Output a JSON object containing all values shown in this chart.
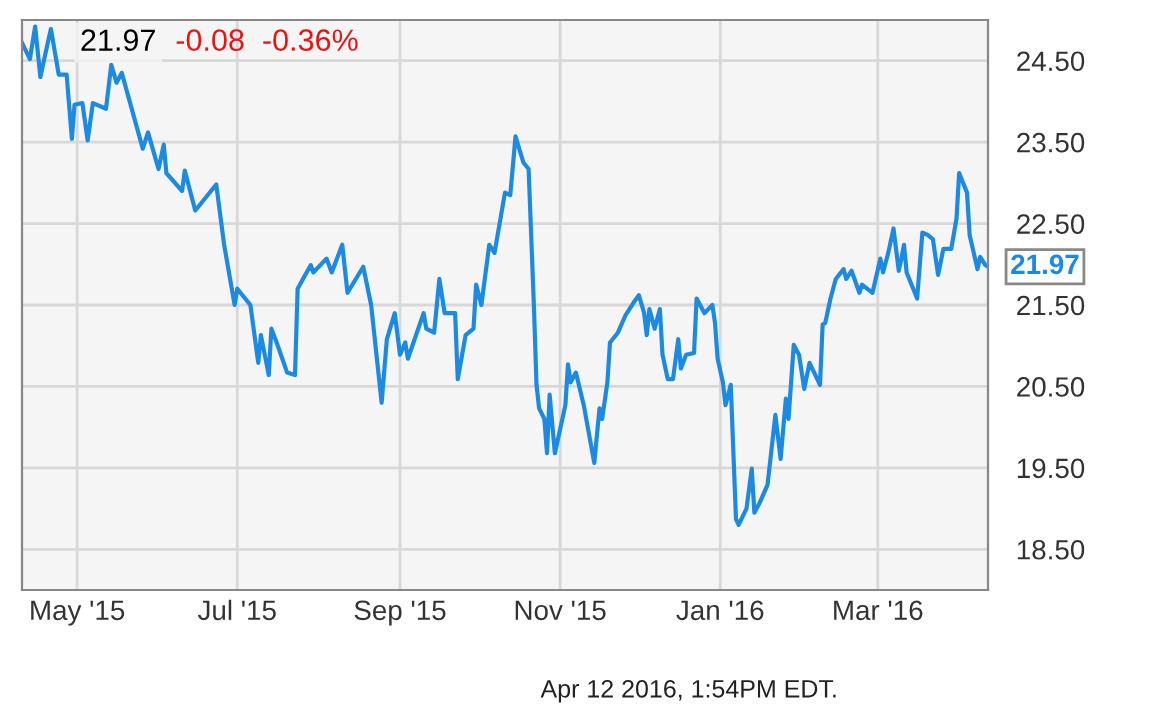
{
  "chart_data": {
    "type": "line",
    "title": "21.97",
    "subtitle": "-0.08  -0.36%",
    "x": [
      "2015-04-10",
      "2015-04-13",
      "2015-04-15",
      "2015-04-17",
      "2015-04-19",
      "2015-04-21",
      "2015-04-24",
      "2015-04-27",
      "2015-04-29",
      "2015-04-30",
      "2015-05-03",
      "2015-05-05",
      "2015-05-07",
      "2015-05-12",
      "2015-05-14",
      "2015-05-16",
      "2015-05-18",
      "2015-05-26",
      "2015-05-28",
      "2015-06-01",
      "2015-06-03",
      "2015-06-04",
      "2015-06-10",
      "2015-06-11",
      "2015-06-15",
      "2015-06-23",
      "2015-06-26",
      "2015-06-30",
      "2015-07-01",
      "2015-07-06",
      "2015-07-09",
      "2015-07-10",
      "2015-07-13",
      "2015-07-14",
      "2015-07-16",
      "2015-07-20",
      "2015-07-23",
      "2015-07-24",
      "2015-07-29",
      "2015-07-30",
      "2015-08-04",
      "2015-08-06",
      "2015-08-10",
      "2015-08-12",
      "2015-08-18",
      "2015-08-21",
      "2015-08-25",
      "2015-08-27",
      "2015-08-30",
      "2015-09-01",
      "2015-09-03",
      "2015-09-04",
      "2015-09-10",
      "2015-09-11",
      "2015-09-14",
      "2015-09-16",
      "2015-09-18",
      "2015-09-22",
      "2015-09-23",
      "2015-09-26",
      "2015-09-29",
      "2015-09-30",
      "2015-10-02",
      "2015-10-05",
      "2015-10-07",
      "2015-10-11",
      "2015-10-13",
      "2015-10-15",
      "2015-10-18",
      "2015-10-20",
      "2015-10-22",
      "2015-10-23",
      "2015-10-24",
      "2015-10-26",
      "2015-10-27",
      "2015-10-28",
      "2015-10-30",
      "2015-11-03",
      "2015-11-04",
      "2015-11-05",
      "2015-11-07",
      "2015-11-10",
      "2015-11-14",
      "2015-11-16",
      "2015-11-17",
      "2015-11-19",
      "2015-11-20",
      "2015-11-23",
      "2015-11-26",
      "2015-11-29",
      "2015-12-01",
      "2015-12-03",
      "2015-12-04",
      "2015-12-05",
      "2015-12-07",
      "2015-12-09",
      "2015-12-10",
      "2015-12-12",
      "2015-12-14",
      "2015-12-16",
      "2015-12-17",
      "2015-12-19",
      "2015-12-22",
      "2015-12-23",
      "2015-12-26",
      "2015-12-29",
      "2015-12-30",
      "2015-12-31",
      "2016-01-02",
      "2016-01-03",
      "2016-01-05",
      "2016-01-07",
      "2016-01-08",
      "2016-01-11",
      "2016-01-13",
      "2016-01-14",
      "2016-01-16",
      "2016-01-19",
      "2016-01-22",
      "2016-01-24",
      "2016-01-26",
      "2016-01-27",
      "2016-01-29",
      "2016-01-31",
      "2016-02-02",
      "2016-02-04",
      "2016-02-08",
      "2016-02-09",
      "2016-02-10",
      "2016-02-12",
      "2016-02-14",
      "2016-02-17",
      "2016-02-18",
      "2016-02-20",
      "2016-02-23",
      "2016-02-24",
      "2016-02-28",
      "2016-03-02",
      "2016-03-03",
      "2016-03-05",
      "2016-03-07",
      "2016-03-09",
      "2016-03-10",
      "2016-03-11",
      "2016-03-12",
      "2016-03-16",
      "2016-03-18",
      "2016-03-20",
      "2016-03-22",
      "2016-03-24",
      "2016-03-26",
      "2016-03-29",
      "2016-03-31",
      "2016-04-01",
      "2016-04-04",
      "2016-04-05",
      "2016-04-08",
      "2016-04-09",
      "2016-04-11",
      "2016-04-12"
    ],
    "series": [
      {
        "color": "#1a8ae5",
        "values": [
          24.72,
          24.52,
          24.92,
          24.3,
          24.6,
          24.89,
          24.33,
          24.33,
          23.54,
          23.96,
          23.98,
          23.52,
          23.98,
          23.91,
          24.45,
          24.23,
          24.35,
          23.42,
          23.62,
          23.17,
          23.47,
          23.12,
          22.9,
          23.15,
          22.66,
          22.98,
          22.24,
          21.5,
          21.7,
          21.5,
          20.79,
          21.13,
          20.64,
          21.21,
          21.04,
          20.67,
          20.64,
          21.7,
          21.99,
          21.9,
          22.07,
          21.9,
          22.24,
          21.65,
          21.97,
          21.5,
          20.3,
          21.08,
          21.4,
          20.89,
          21.04,
          20.84,
          21.4,
          21.21,
          21.16,
          21.82,
          21.4,
          21.4,
          20.59,
          21.13,
          21.21,
          21.75,
          21.5,
          22.24,
          22.14,
          22.88,
          22.85,
          23.57,
          23.25,
          23.17,
          21.5,
          20.52,
          20.23,
          20.1,
          19.68,
          20.4,
          19.68,
          20.27,
          20.77,
          20.55,
          20.67,
          20.27,
          19.56,
          20.23,
          20.1,
          20.55,
          21.04,
          21.16,
          21.38,
          21.53,
          21.62,
          21.4,
          21.13,
          21.45,
          21.21,
          21.45,
          20.89,
          20.59,
          20.59,
          21.08,
          20.72,
          20.89,
          20.91,
          21.58,
          21.4,
          21.5,
          21.28,
          20.84,
          20.55,
          20.27,
          20.52,
          18.87,
          18.8,
          19.0,
          19.49,
          18.95,
          19.07,
          19.29,
          20.15,
          19.61,
          20.35,
          20.1,
          21.01,
          20.89,
          20.47,
          20.79,
          20.52,
          21.26,
          21.28,
          21.58,
          21.82,
          21.94,
          21.82,
          21.92,
          21.65,
          21.75,
          21.65,
          22.07,
          21.9,
          22.14,
          22.44,
          21.92,
          22.07,
          22.24,
          21.9,
          21.58,
          22.39,
          22.36,
          22.31,
          21.87,
          22.19,
          22.19,
          22.56,
          23.12,
          22.88,
          22.36,
          21.94,
          22.09,
          21.99,
          21.97
        ]
      }
    ],
    "xlim": [
      "2015-04-10",
      "2016-04-12"
    ],
    "xticks": [
      {
        "value": "2015-05-01",
        "label": "May '15"
      },
      {
        "value": "2015-07-01",
        "label": "Jul '15"
      },
      {
        "value": "2015-09-01",
        "label": "Sep '15"
      },
      {
        "value": "2015-11-01",
        "label": "Nov '15"
      },
      {
        "value": "2016-01-01",
        "label": "Jan '16"
      },
      {
        "value": "2016-03-01",
        "label": "Mar '16"
      }
    ],
    "ylim": [
      18.0,
      25.0
    ],
    "yticks": [
      {
        "value": 18.5,
        "label": "18.50"
      },
      {
        "value": 19.5,
        "label": "19.50"
      },
      {
        "value": 20.5,
        "label": "20.50"
      },
      {
        "value": 21.5,
        "label": "21.50"
      },
      {
        "value": 22.5,
        "label": "22.50"
      },
      {
        "value": 23.5,
        "label": "23.50"
      },
      {
        "value": 24.5,
        "label": "24.50"
      }
    ],
    "grid": true,
    "annotations": [
      {
        "text": "21.97",
        "x": "2016-04-12",
        "y": 21.97
      },
      "Apr 12 2016, 1:54PM EDT."
    ]
  }
}
